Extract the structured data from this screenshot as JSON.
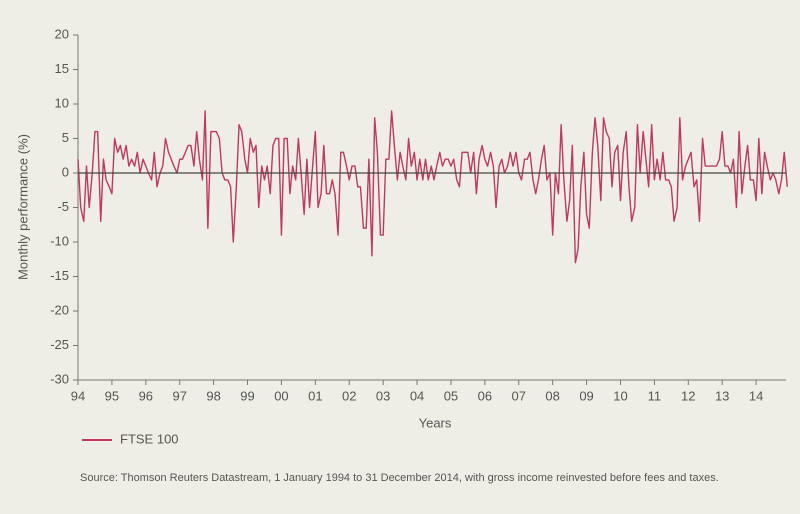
{
  "chart_data": {
    "type": "line",
    "ylabel": "Monthly performance (%)",
    "xlabel": "Years",
    "source": "Source: Thomson Reuters Datastream, 1 January 1994 to 31 December 2014, with gross income reinvested before fees and taxes.",
    "xlim": [
      1994,
      2015
    ],
    "ylim": [
      -30,
      20
    ],
    "yticks": [
      -30,
      -25,
      -20,
      -15,
      -10,
      -5,
      0,
      5,
      10,
      15,
      20
    ],
    "xticks": [
      {
        "value": 1994,
        "label": "94"
      },
      {
        "value": 1995,
        "label": "95"
      },
      {
        "value": 1996,
        "label": "96"
      },
      {
        "value": 1997,
        "label": "97"
      },
      {
        "value": 1998,
        "label": "98"
      },
      {
        "value": 1999,
        "label": "99"
      },
      {
        "value": 2000,
        "label": "00"
      },
      {
        "value": 2001,
        "label": "01"
      },
      {
        "value": 2002,
        "label": "02"
      },
      {
        "value": 2003,
        "label": "03"
      },
      {
        "value": 2004,
        "label": "04"
      },
      {
        "value": 2005,
        "label": "05"
      },
      {
        "value": 2006,
        "label": "06"
      },
      {
        "value": 2007,
        "label": "07"
      },
      {
        "value": 2008,
        "label": "08"
      },
      {
        "value": 2009,
        "label": "09"
      },
      {
        "value": 2010,
        "label": "10"
      },
      {
        "value": 2011,
        "label": "11"
      },
      {
        "value": 2012,
        "label": "12"
      },
      {
        "value": 2013,
        "label": "13"
      },
      {
        "value": 2014,
        "label": "14"
      }
    ],
    "x": [
      1994.0,
      1994.08,
      1994.17,
      1994.25,
      1994.33,
      1994.42,
      1994.5,
      1994.58,
      1994.67,
      1994.75,
      1994.83,
      1994.92,
      1995.0,
      1995.08,
      1995.17,
      1995.25,
      1995.33,
      1995.42,
      1995.5,
      1995.58,
      1995.67,
      1995.75,
      1995.83,
      1995.92,
      1996.0,
      1996.08,
      1996.17,
      1996.25,
      1996.33,
      1996.42,
      1996.5,
      1996.58,
      1996.67,
      1996.75,
      1996.83,
      1996.92,
      1997.0,
      1997.08,
      1997.17,
      1997.25,
      1997.33,
      1997.42,
      1997.5,
      1997.58,
      1997.67,
      1997.75,
      1997.83,
      1997.92,
      1998.0,
      1998.08,
      1998.17,
      1998.25,
      1998.33,
      1998.42,
      1998.5,
      1998.58,
      1998.67,
      1998.75,
      1998.83,
      1998.92,
      1999.0,
      1999.08,
      1999.17,
      1999.25,
      1999.33,
      1999.42,
      1999.5,
      1999.58,
      1999.67,
      1999.75,
      1999.83,
      1999.92,
      2000.0,
      2000.08,
      2000.17,
      2000.25,
      2000.33,
      2000.42,
      2000.5,
      2000.58,
      2000.67,
      2000.75,
      2000.83,
      2000.92,
      2001.0,
      2001.08,
      2001.17,
      2001.25,
      2001.33,
      2001.42,
      2001.5,
      2001.58,
      2001.67,
      2001.75,
      2001.83,
      2001.92,
      2002.0,
      2002.08,
      2002.17,
      2002.25,
      2002.33,
      2002.42,
      2002.5,
      2002.58,
      2002.67,
      2002.75,
      2002.83,
      2002.92,
      2003.0,
      2003.08,
      2003.17,
      2003.25,
      2003.33,
      2003.42,
      2003.5,
      2003.58,
      2003.67,
      2003.75,
      2003.83,
      2003.92,
      2004.0,
      2004.08,
      2004.17,
      2004.25,
      2004.33,
      2004.42,
      2004.5,
      2004.58,
      2004.67,
      2004.75,
      2004.83,
      2004.92,
      2005.0,
      2005.08,
      2005.17,
      2005.25,
      2005.33,
      2005.42,
      2005.5,
      2005.58,
      2005.67,
      2005.75,
      2005.83,
      2005.92,
      2006.0,
      2006.08,
      2006.17,
      2006.25,
      2006.33,
      2006.42,
      2006.5,
      2006.58,
      2006.67,
      2006.75,
      2006.83,
      2006.92,
      2007.0,
      2007.08,
      2007.17,
      2007.25,
      2007.33,
      2007.42,
      2007.5,
      2007.58,
      2007.67,
      2007.75,
      2007.83,
      2007.92,
      2008.0,
      2008.08,
      2008.17,
      2008.25,
      2008.33,
      2008.42,
      2008.5,
      2008.58,
      2008.67,
      2008.75,
      2008.83,
      2008.92,
      2009.0,
      2009.08,
      2009.17,
      2009.25,
      2009.33,
      2009.42,
      2009.5,
      2009.58,
      2009.67,
      2009.75,
      2009.83,
      2009.92,
      2010.0,
      2010.08,
      2010.17,
      2010.25,
      2010.33,
      2010.42,
      2010.5,
      2010.58,
      2010.67,
      2010.75,
      2010.83,
      2010.92,
      2011.0,
      2011.08,
      2011.17,
      2011.25,
      2011.33,
      2011.42,
      2011.5,
      2011.58,
      2011.67,
      2011.75,
      2011.83,
      2011.92,
      2012.0,
      2012.08,
      2012.17,
      2012.25,
      2012.33,
      2012.42,
      2012.5,
      2012.58,
      2012.67,
      2012.75,
      2012.83,
      2012.92,
      2013.0,
      2013.08,
      2013.17,
      2013.25,
      2013.33,
      2013.42,
      2013.5,
      2013.58,
      2013.67,
      2013.75,
      2013.83,
      2013.92,
      2014.0,
      2014.08,
      2014.17,
      2014.25,
      2014.33,
      2014.42,
      2014.5,
      2014.58,
      2014.67,
      2014.75,
      2014.83,
      2014.92
    ],
    "series": [
      {
        "name": "FTSE 100",
        "color": "#c0385a",
        "values": [
          2,
          -5,
          -7,
          1,
          -5,
          0,
          6,
          6,
          -7,
          2,
          -1,
          -2,
          -3,
          5,
          3,
          4,
          2,
          4,
          1,
          2,
          1,
          3,
          0,
          2,
          1,
          0,
          -1,
          3,
          -2,
          0,
          1,
          5,
          3,
          2,
          1,
          0,
          2,
          2,
          3,
          4,
          4,
          1,
          6,
          2,
          -1,
          9,
          -8,
          6,
          6,
          6,
          5,
          0,
          -1,
          -1,
          -2,
          -10,
          -2,
          7,
          6,
          2,
          0,
          5,
          3,
          4,
          -5,
          1,
          -1,
          1,
          -3,
          4,
          5,
          5,
          -9,
          5,
          5,
          -3,
          1,
          -1,
          5,
          0,
          -6,
          2,
          -5,
          1,
          6,
          -5,
          -3,
          4,
          -3,
          -3,
          -1,
          -3,
          -9,
          3,
          3,
          1,
          -1,
          1,
          1,
          -2,
          -2,
          -8,
          -8,
          2,
          -12,
          8,
          3,
          -9,
          -9,
          2,
          2,
          9,
          4,
          -1,
          3,
          1,
          -1,
          5,
          1,
          3,
          -1,
          2,
          -1,
          2,
          -1,
          1,
          -1,
          1,
          3,
          1,
          2,
          2,
          1,
          2,
          -1,
          -2,
          3,
          3,
          3,
          0,
          3,
          -3,
          2,
          4,
          2,
          1,
          3,
          1,
          -5,
          1,
          2,
          0,
          1,
          3,
          1,
          3,
          0,
          -1,
          2,
          2,
          3,
          -1,
          -3,
          -1,
          2,
          4,
          -1,
          0,
          -9,
          0,
          -3,
          7,
          -1,
          -7,
          -4,
          4,
          -13,
          -11,
          -2,
          3,
          -6,
          -8,
          3,
          8,
          4,
          -4,
          8,
          6,
          5,
          -2,
          3,
          4,
          -4,
          3,
          6,
          -2,
          -7,
          -5,
          7,
          0,
          6,
          2,
          -2,
          7,
          -1,
          2,
          -1,
          3,
          -1,
          -1,
          -2,
          -7,
          -5,
          8,
          -1,
          1,
          2,
          3,
          -2,
          -1,
          -7,
          5,
          1,
          1,
          1,
          1,
          1,
          2,
          6,
          1,
          1,
          0,
          2,
          -5,
          6,
          -3,
          1,
          4,
          -1,
          -1,
          -4,
          5,
          -3,
          3,
          1,
          -1,
          0,
          -1,
          -3,
          -1,
          3,
          -2
        ]
      }
    ],
    "legend": "bottom-left"
  }
}
